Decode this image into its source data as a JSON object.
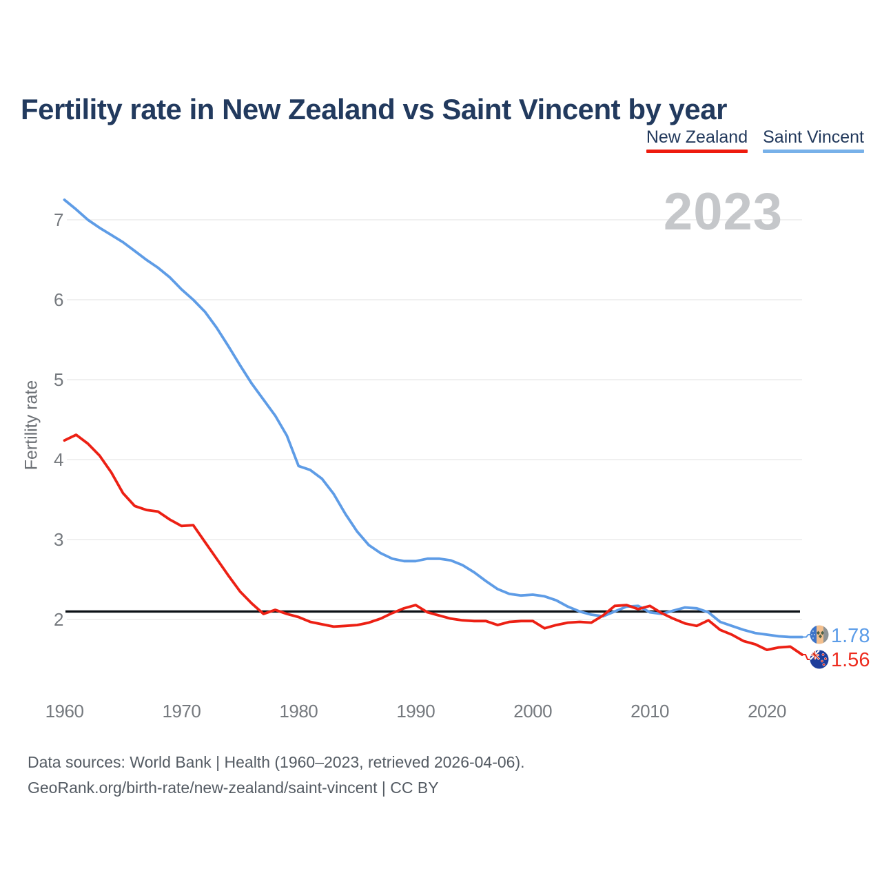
{
  "header": {
    "title": "Fertility rate in New Zealand vs Saint Vincent by year"
  },
  "legend": [
    {
      "label": "New Zealand",
      "color": "#ee1b0e"
    },
    {
      "label": "Saint Vincent",
      "color": "#78b1e9"
    }
  ],
  "watermark": "2023",
  "footer": {
    "line1": "Data sources: World Bank | Health (1960–2023, retrieved 2026-04-06).",
    "line2": "GeoRank.org/birth-rate/new-zealand/saint-vincent | CC BY"
  },
  "chart_data": {
    "type": "line",
    "title": "Fertility rate in New Zealand vs Saint Vincent by year",
    "ylabel": "Fertility rate",
    "xlabel": "",
    "xlim": [
      1960,
      2023
    ],
    "ylim": [
      1.45,
      7.45
    ],
    "x_ticks": [
      1960,
      1970,
      1980,
      1990,
      2000,
      2010,
      2020
    ],
    "y_ticks": [
      2,
      3,
      4,
      5,
      6,
      7
    ],
    "grid": "horizontal",
    "legend_position": "top-right",
    "reference_line": {
      "value": 2.1,
      "color": "#0c1116"
    },
    "years": [
      1960,
      1961,
      1962,
      1963,
      1964,
      1965,
      1966,
      1967,
      1968,
      1969,
      1970,
      1971,
      1972,
      1973,
      1974,
      1975,
      1976,
      1977,
      1978,
      1979,
      1980,
      1981,
      1982,
      1983,
      1984,
      1985,
      1986,
      1987,
      1988,
      1989,
      1990,
      1991,
      1992,
      1993,
      1994,
      1995,
      1996,
      1997,
      1998,
      1999,
      2000,
      2001,
      2002,
      2003,
      2004,
      2005,
      2006,
      2007,
      2008,
      2009,
      2010,
      2011,
      2012,
      2013,
      2014,
      2015,
      2016,
      2017,
      2018,
      2019,
      2020,
      2021,
      2022,
      2023
    ],
    "series": [
      {
        "name": "New Zealand",
        "color": "#ec2014",
        "end_label": "1.56",
        "end_value": 1.56,
        "values": [
          4.24,
          4.31,
          4.2,
          4.05,
          3.84,
          3.58,
          3.42,
          3.37,
          3.35,
          3.25,
          3.17,
          3.18,
          2.97,
          2.76,
          2.55,
          2.35,
          2.2,
          2.07,
          2.12,
          2.07,
          2.03,
          1.97,
          1.94,
          1.91,
          1.92,
          1.93,
          1.96,
          2.01,
          2.08,
          2.14,
          2.18,
          2.09,
          2.05,
          2.01,
          1.99,
          1.98,
          1.98,
          1.93,
          1.97,
          1.98,
          1.98,
          1.89,
          1.93,
          1.96,
          1.97,
          1.96,
          2.05,
          2.17,
          2.18,
          2.13,
          2.17,
          2.08,
          2.01,
          1.95,
          1.92,
          1.99,
          1.87,
          1.81,
          1.73,
          1.69,
          1.62,
          1.65,
          1.66,
          1.56
        ]
      },
      {
        "name": "Saint Vincent",
        "color": "#5e9ce6",
        "end_label": "1.78",
        "end_value": 1.78,
        "values": [
          7.25,
          7.13,
          7.0,
          6.9,
          6.81,
          6.72,
          6.61,
          6.5,
          6.4,
          6.28,
          6.13,
          6.0,
          5.85,
          5.65,
          5.42,
          5.18,
          4.95,
          4.75,
          4.55,
          4.3,
          3.92,
          3.87,
          3.76,
          3.57,
          3.32,
          3.1,
          2.93,
          2.83,
          2.76,
          2.73,
          2.73,
          2.76,
          2.76,
          2.74,
          2.68,
          2.59,
          2.48,
          2.38,
          2.32,
          2.3,
          2.31,
          2.29,
          2.24,
          2.16,
          2.1,
          2.06,
          2.04,
          2.1,
          2.16,
          2.17,
          2.09,
          2.07,
          2.11,
          2.15,
          2.14,
          2.09,
          1.97,
          1.92,
          1.87,
          1.83,
          1.81,
          1.79,
          1.78,
          1.78
        ]
      }
    ]
  }
}
